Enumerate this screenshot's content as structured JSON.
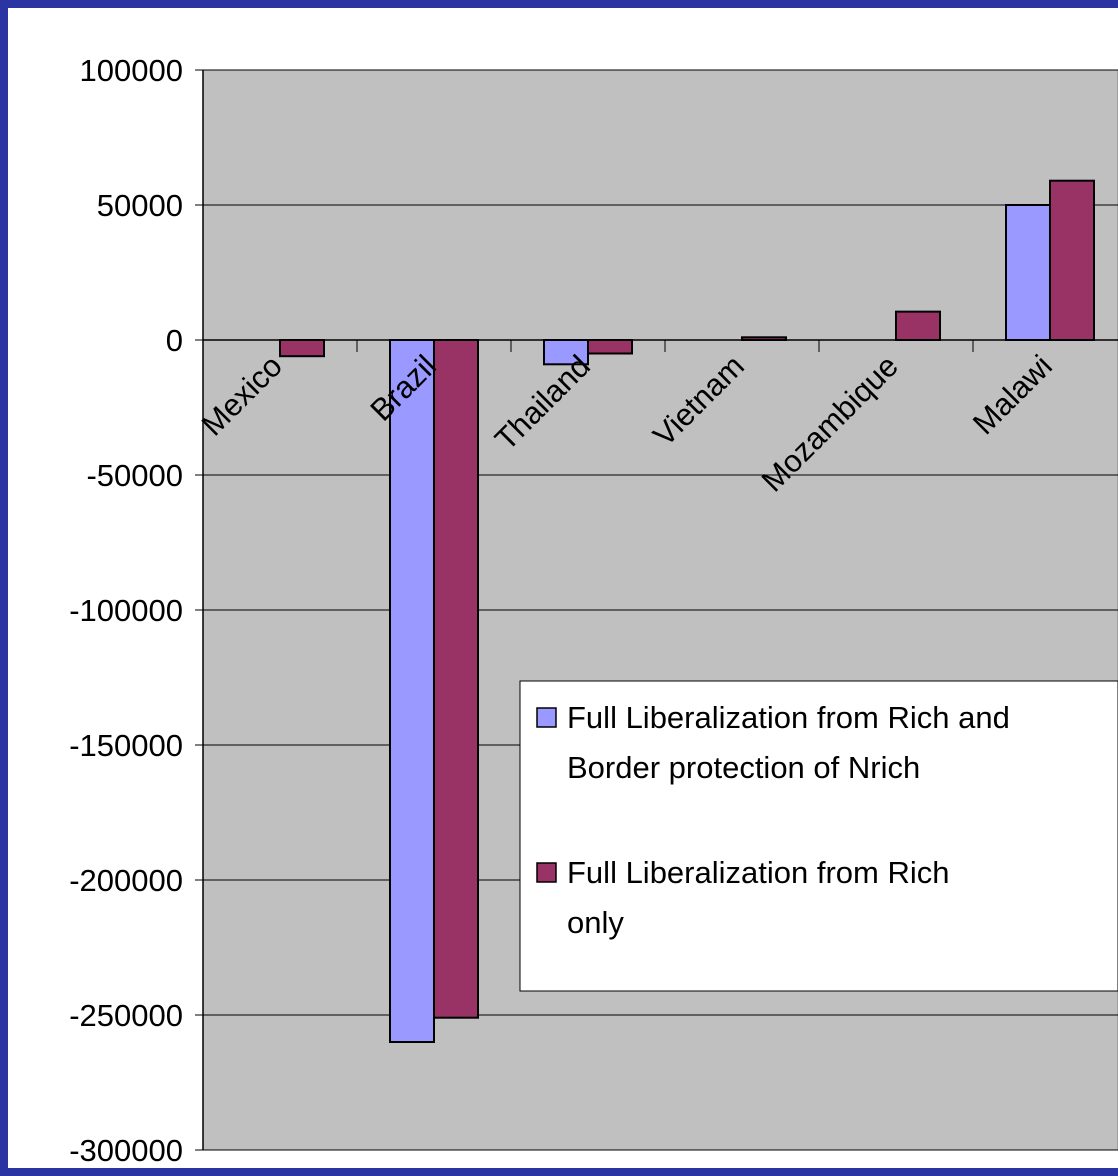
{
  "chart_data": {
    "type": "bar",
    "categories": [
      "Mexico",
      "Brazil",
      "Thailand",
      "Vietnam",
      "Mozambique",
      "Malawi"
    ],
    "series": [
      {
        "name": "Full Liberalization from Rich and Border protection of Nrich",
        "values": [
          0,
          -260000,
          -9000,
          0,
          0,
          50000
        ],
        "color": "#9999ff"
      },
      {
        "name": "Full Liberalization from Rich only",
        "values": [
          -6000,
          -251000,
          -5000,
          1000,
          10500,
          59000
        ],
        "color": "#993366"
      }
    ],
    "ylim": [
      -300000,
      100000
    ],
    "yticks": [
      "100000",
      "50000",
      "0",
      "-50000",
      "-100000",
      "-150000",
      "-200000",
      "-250000",
      "-300000"
    ],
    "legend": {
      "lines": [
        [
          "Full Liberalization from Rich and",
          "Border protection of Nrich"
        ],
        [
          "Full Liberalization from Rich",
          "only"
        ]
      ],
      "position": "bottom-right"
    },
    "grid": true,
    "plot_background": "#c0c0c0",
    "frame_color": "#2a35a3",
    "title": "",
    "xlabel": "",
    "ylabel": ""
  }
}
